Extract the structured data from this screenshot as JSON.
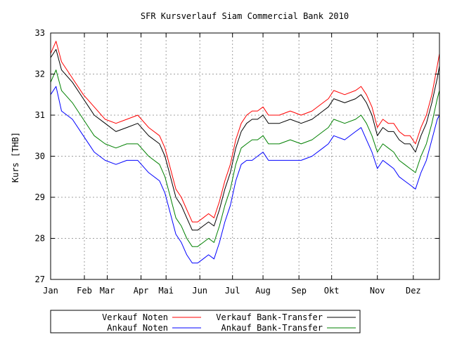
{
  "chart_data": {
    "type": "line",
    "title": "SFR Kursverlauf Siam Commercial Bank 2010",
    "xlabel": "",
    "ylabel": "Kurs [THB]",
    "ylim": [
      27,
      33
    ],
    "yticks": [
      "27",
      "28",
      "29",
      "30",
      "31",
      "32",
      "33"
    ],
    "xlim_days": [
      0,
      357
    ],
    "xticks": [
      {
        "label": "Jan",
        "day": 0
      },
      {
        "label": "Feb",
        "day": 31
      },
      {
        "label": "Mar",
        "day": 52
      },
      {
        "label": "Apr",
        "day": 83
      },
      {
        "label": "Mai",
        "day": 106
      },
      {
        "label": "Jun",
        "day": 137
      },
      {
        "label": "Jul",
        "day": 167
      },
      {
        "label": "Aug",
        "day": 195
      },
      {
        "label": "Sep",
        "day": 228
      },
      {
        "label": "Okt",
        "day": 258
      },
      {
        "label": "Nov",
        "day": 300
      },
      {
        "label": "Dez",
        "day": 333
      }
    ],
    "grid": true,
    "legend_position": "bottom",
    "series": [
      {
        "name": "Verkauf Noten",
        "color": "#ff0000",
        "x": [
          0,
          5,
          10,
          20,
          30,
          40,
          50,
          60,
          70,
          80,
          90,
          100,
          105,
          110,
          115,
          120,
          125,
          130,
          135,
          140,
          145,
          150,
          155,
          160,
          165,
          170,
          175,
          180,
          185,
          190,
          195,
          200,
          210,
          220,
          230,
          240,
          250,
          255,
          260,
          270,
          280,
          285,
          290,
          295,
          300,
          305,
          310,
          315,
          320,
          325,
          330,
          335,
          340,
          345,
          350,
          355,
          357
        ],
        "y": [
          32.5,
          32.8,
          32.3,
          31.9,
          31.5,
          31.2,
          30.9,
          30.8,
          30.9,
          31.0,
          30.7,
          30.5,
          30.2,
          29.7,
          29.2,
          29.0,
          28.7,
          28.4,
          28.4,
          28.5,
          28.6,
          28.5,
          28.9,
          29.4,
          29.8,
          30.4,
          30.8,
          31.0,
          31.1,
          31.1,
          31.2,
          31.0,
          31.0,
          31.1,
          31.0,
          31.1,
          31.3,
          31.4,
          31.6,
          31.5,
          31.6,
          31.7,
          31.5,
          31.2,
          30.7,
          30.9,
          30.8,
          30.8,
          30.6,
          30.5,
          30.5,
          30.3,
          30.7,
          31.0,
          31.5,
          32.2,
          32.5
        ]
      },
      {
        "name": "Verkauf Bank-Transfer",
        "color": "#000000",
        "x": [
          0,
          5,
          10,
          20,
          30,
          40,
          50,
          60,
          70,
          80,
          90,
          100,
          105,
          110,
          115,
          120,
          125,
          130,
          135,
          140,
          145,
          150,
          155,
          160,
          165,
          170,
          175,
          180,
          185,
          190,
          195,
          200,
          210,
          220,
          230,
          240,
          250,
          255,
          260,
          270,
          280,
          285,
          290,
          295,
          300,
          305,
          310,
          315,
          320,
          325,
          330,
          335,
          340,
          345,
          350,
          355,
          357
        ],
        "y": [
          32.4,
          32.6,
          32.1,
          31.8,
          31.4,
          31.0,
          30.8,
          30.6,
          30.7,
          30.8,
          30.5,
          30.3,
          30.0,
          29.5,
          29.0,
          28.8,
          28.5,
          28.2,
          28.2,
          28.3,
          28.4,
          28.3,
          28.7,
          29.2,
          29.6,
          30.2,
          30.6,
          30.8,
          30.9,
          30.9,
          31.0,
          30.8,
          30.8,
          30.9,
          30.8,
          30.9,
          31.1,
          31.2,
          31.4,
          31.3,
          31.4,
          31.5,
          31.3,
          31.0,
          30.5,
          30.7,
          30.6,
          30.6,
          30.4,
          30.3,
          30.3,
          30.1,
          30.5,
          30.8,
          31.3,
          31.9,
          32.2
        ]
      },
      {
        "name": "Ankauf Noten",
        "color": "#0000ff",
        "x": [
          0,
          5,
          10,
          20,
          30,
          40,
          50,
          60,
          70,
          80,
          90,
          100,
          105,
          110,
          115,
          120,
          125,
          130,
          135,
          140,
          145,
          150,
          155,
          160,
          165,
          170,
          175,
          180,
          185,
          190,
          195,
          200,
          210,
          220,
          230,
          240,
          250,
          255,
          260,
          270,
          280,
          285,
          290,
          295,
          300,
          305,
          310,
          315,
          320,
          325,
          330,
          335,
          340,
          345,
          350,
          355,
          357
        ],
        "y": [
          31.5,
          31.7,
          31.1,
          30.9,
          30.5,
          30.1,
          29.9,
          29.8,
          29.9,
          29.9,
          29.6,
          29.4,
          29.1,
          28.6,
          28.1,
          27.9,
          27.6,
          27.4,
          27.4,
          27.5,
          27.6,
          27.5,
          27.9,
          28.4,
          28.8,
          29.4,
          29.8,
          29.9,
          29.9,
          30.0,
          30.1,
          29.9,
          29.9,
          29.9,
          29.9,
          30.0,
          30.2,
          30.3,
          30.5,
          30.4,
          30.6,
          30.7,
          30.4,
          30.1,
          29.7,
          29.9,
          29.8,
          29.7,
          29.5,
          29.4,
          29.3,
          29.2,
          29.6,
          29.9,
          30.4,
          30.9,
          31.0
        ]
      },
      {
        "name": "Ankauf Bank-Transfer",
        "color": "#008000",
        "x": [
          0,
          5,
          10,
          20,
          30,
          40,
          50,
          60,
          70,
          80,
          90,
          100,
          105,
          110,
          115,
          120,
          125,
          130,
          135,
          140,
          145,
          150,
          155,
          160,
          165,
          170,
          175,
          180,
          185,
          190,
          195,
          200,
          210,
          220,
          230,
          240,
          250,
          255,
          260,
          270,
          280,
          285,
          290,
          295,
          300,
          305,
          310,
          315,
          320,
          325,
          330,
          335,
          340,
          345,
          350,
          355,
          357
        ],
        "y": [
          31.8,
          32.1,
          31.6,
          31.3,
          30.9,
          30.5,
          30.3,
          30.2,
          30.3,
          30.3,
          30.0,
          29.8,
          29.5,
          29.0,
          28.5,
          28.3,
          28.0,
          27.8,
          27.8,
          27.9,
          28.0,
          27.9,
          28.3,
          28.8,
          29.2,
          29.8,
          30.2,
          30.3,
          30.4,
          30.4,
          30.5,
          30.3,
          30.3,
          30.4,
          30.3,
          30.4,
          30.6,
          30.7,
          30.9,
          30.8,
          30.9,
          31.0,
          30.8,
          30.5,
          30.1,
          30.3,
          30.2,
          30.1,
          29.9,
          29.8,
          29.7,
          29.6,
          30.0,
          30.3,
          30.8,
          31.4,
          31.6
        ]
      }
    ]
  },
  "legend": {
    "rows": [
      [
        "Verkauf Noten",
        "Verkauf Bank-Transfer"
      ],
      [
        "Ankauf Noten",
        "Ankauf Bank-Transfer"
      ]
    ]
  }
}
